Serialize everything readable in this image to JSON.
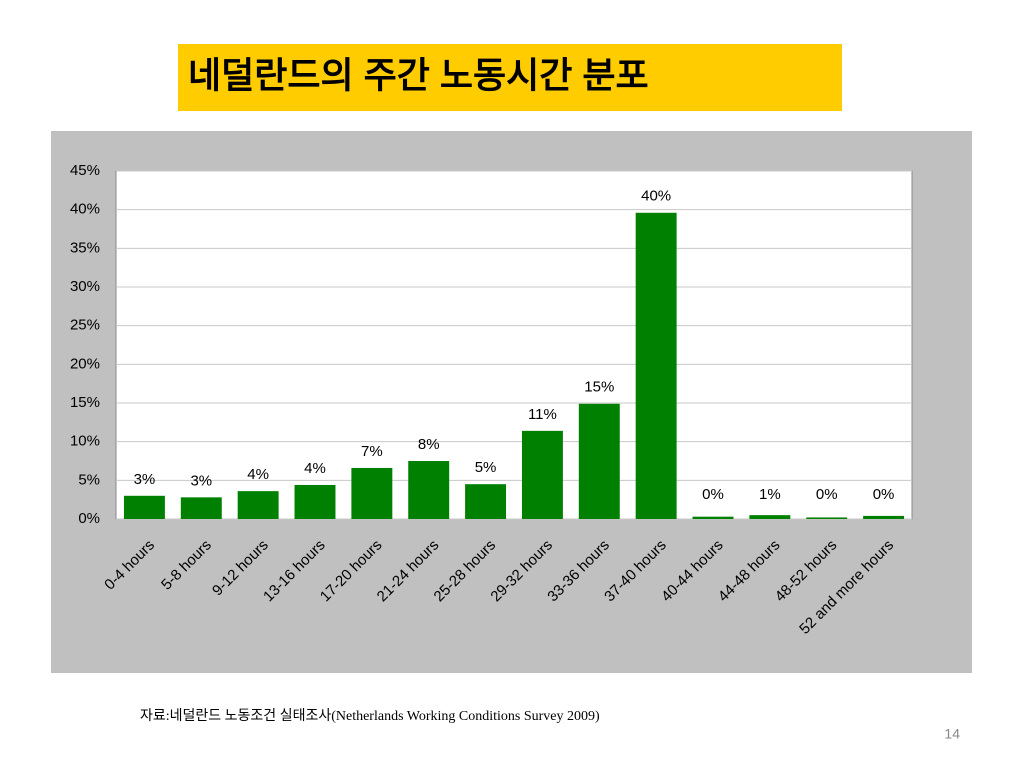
{
  "title": "네덜란드의 주간 노동시간 분포",
  "footer": "자료:네덜란드 노동조건 실태조사(Netherlands Working Conditions Survey 2009)",
  "page_number": "14",
  "chart_data": {
    "type": "bar",
    "categories": [
      "0-4 hours",
      "5-8 hours",
      "9-12 hours",
      "13-16 hours",
      "17-20 hours",
      "21-24 hours",
      "25-28 hours",
      "29-32 hours",
      "33-36 hours",
      "37-40 hours",
      "40-44 hours",
      "44-48 hours",
      "48-52 hours",
      "52 and more hours"
    ],
    "values": [
      3.0,
      2.8,
      3.6,
      4.4,
      6.6,
      7.5,
      4.5,
      11.4,
      14.9,
      39.6,
      0.3,
      0.5,
      0.2,
      0.4
    ],
    "value_labels": [
      "3%",
      "3%",
      "4%",
      "4%",
      "7%",
      "8%",
      "5%",
      "11%",
      "15%",
      "40%",
      "0%",
      "1%",
      "0%",
      "0%"
    ],
    "color": "#008000",
    "ylim": [
      0,
      45
    ],
    "yticks": [
      {
        "value": 0,
        "label": "0%"
      },
      {
        "value": 5,
        "label": "5%"
      },
      {
        "value": 10,
        "label": "10%"
      },
      {
        "value": 15,
        "label": "15%"
      },
      {
        "value": 20,
        "label": "20%"
      },
      {
        "value": 25,
        "label": "25%"
      },
      {
        "value": 30,
        "label": "30%"
      },
      {
        "value": 35,
        "label": "35%"
      },
      {
        "value": 40,
        "label": "40%"
      },
      {
        "value": 45,
        "label": "45%"
      }
    ],
    "grid": true
  }
}
